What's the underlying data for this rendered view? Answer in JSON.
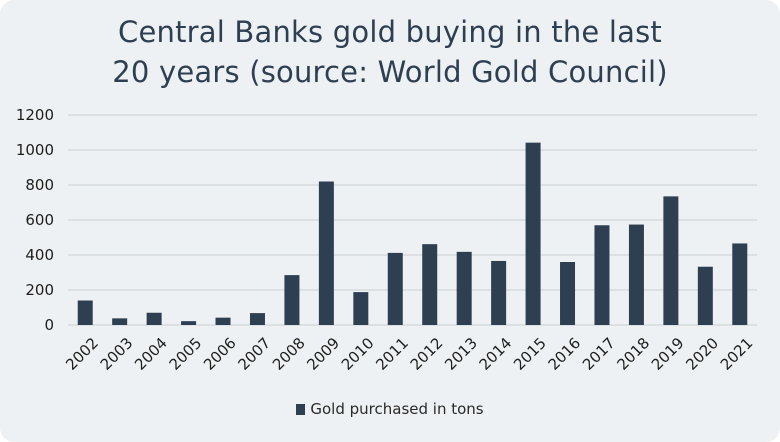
{
  "colors": {
    "background": "#eef1f3",
    "bar": "#2e3f52",
    "grid": "#c8ced3",
    "title": "#2e3f52"
  },
  "chart_data": {
    "type": "bar",
    "title": "Central Banks gold buying in the last 20 years (source: World Gold Council)",
    "title_lines": [
      "Central Banks gold buying in the last",
      "20 years (source: World Gold Council)"
    ],
    "categories": [
      "2002",
      "2003",
      "2004",
      "2005",
      "2006",
      "2007",
      "2008",
      "2009",
      "2010",
      "2011",
      "2012",
      "2013",
      "2014",
      "2015",
      "2016",
      "2017",
      "2018",
      "2019",
      "2020",
      "2021"
    ],
    "series": [
      {
        "name": "Gold purchased in tons",
        "values": [
          140,
          38,
          70,
          22,
          42,
          68,
          285,
          820,
          188,
          412,
          462,
          418,
          366,
          1042,
          360,
          570,
          574,
          735,
          333,
          466
        ]
      }
    ],
    "yticks": [
      0,
      200,
      400,
      600,
      800,
      1000,
      1200
    ],
    "ylim": [
      0,
      1200
    ],
    "grid": true,
    "legend_position": "bottom",
    "xlabel": "",
    "ylabel": ""
  }
}
